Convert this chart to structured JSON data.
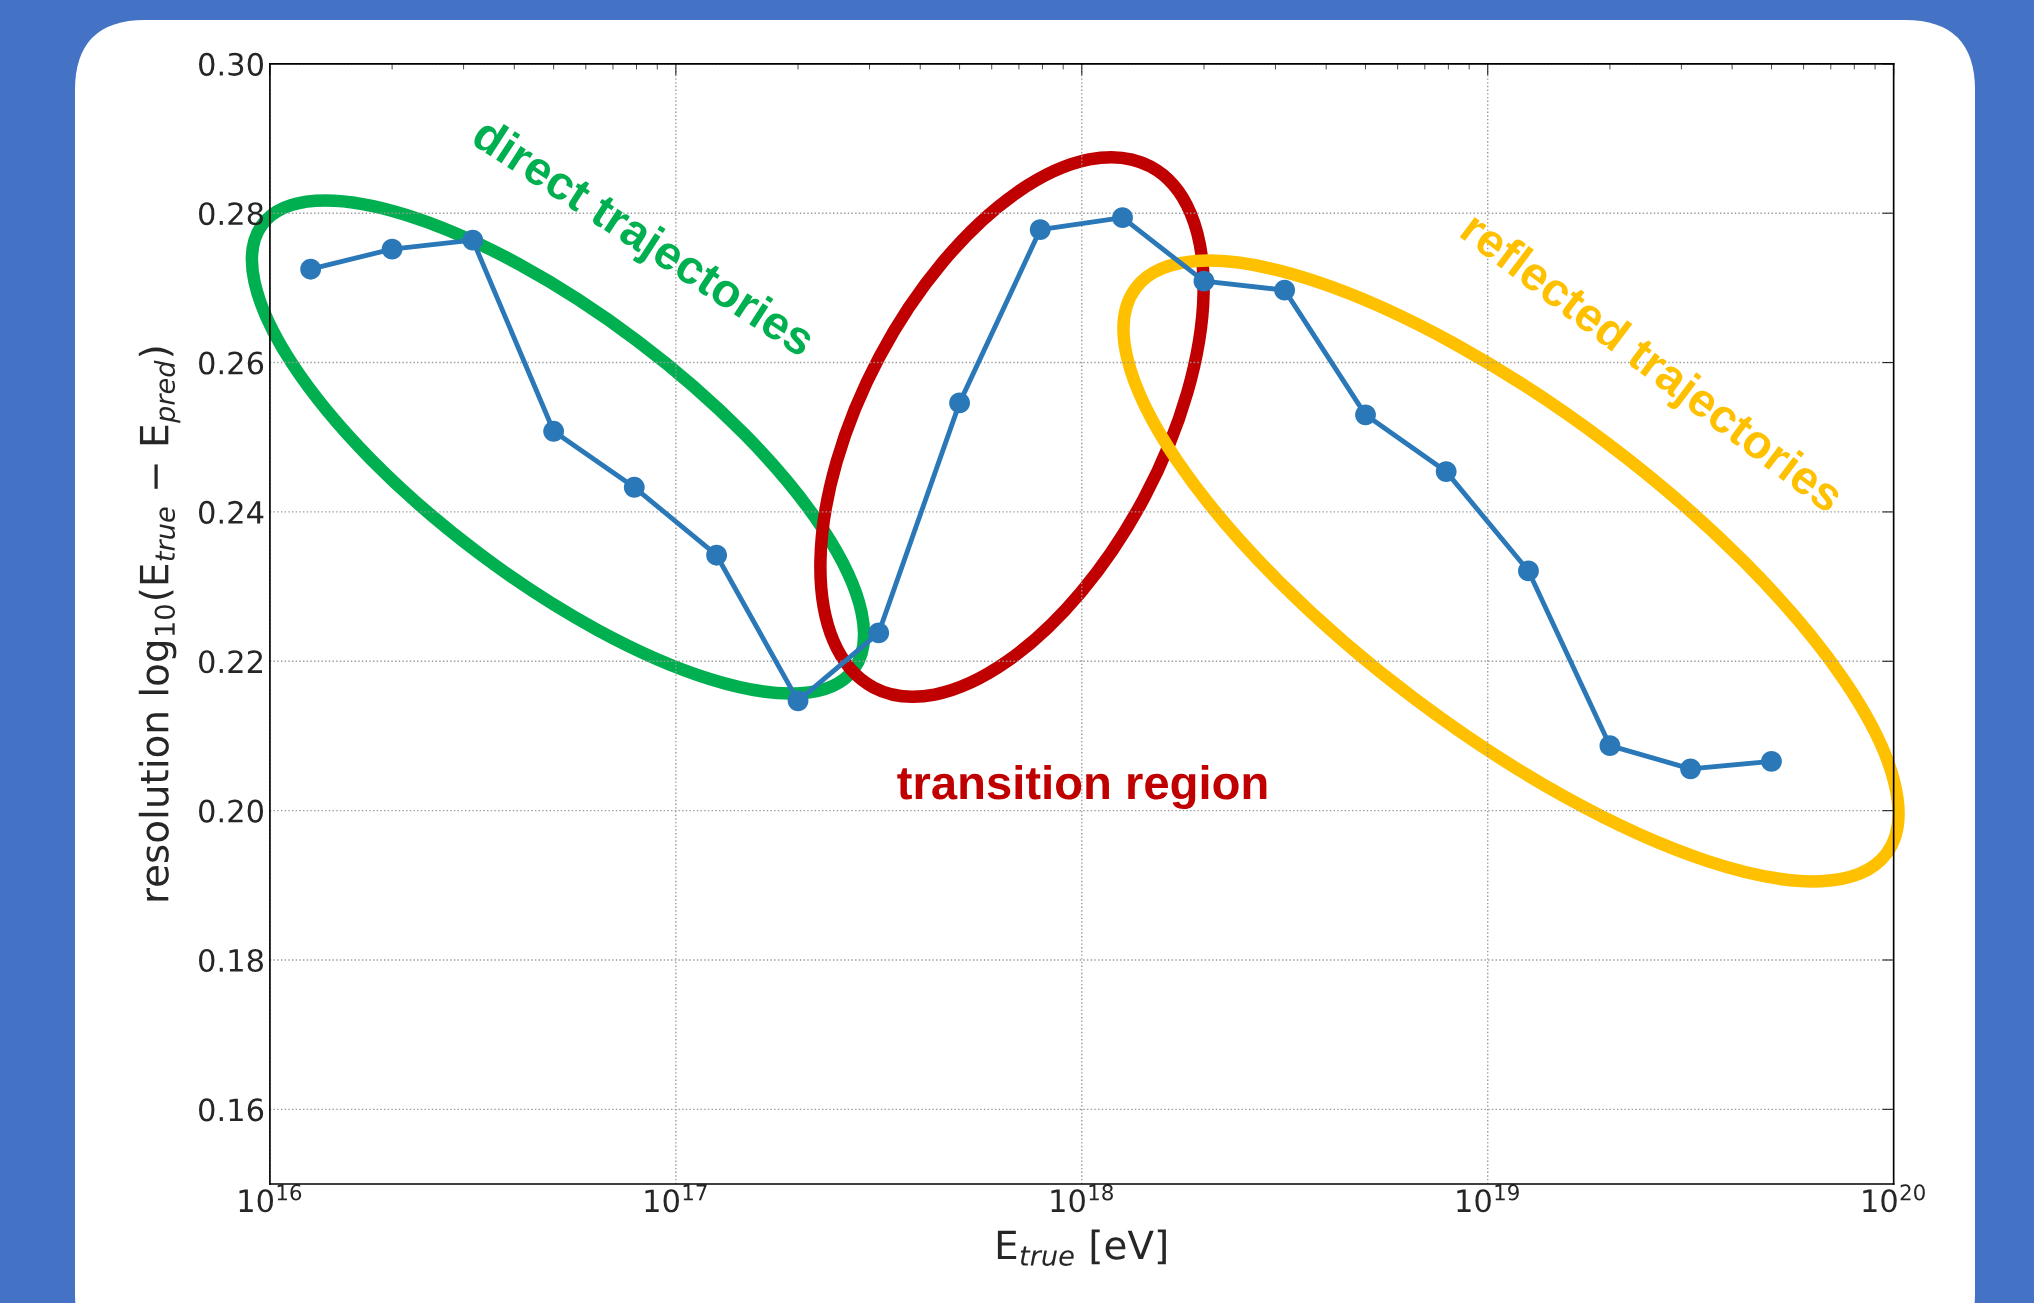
{
  "chart_data": {
    "type": "line",
    "xlabel": "E$_{true}$ [eV]",
    "ylabel": "resolution log$_{10}$(E$_{true}$ − E$_{pred}$)",
    "x": [
      1.26e+16,
      2e+16,
      3.16e+16,
      5e+16,
      7.9e+16,
      1.26e+17,
      2e+17,
      3.16e+17,
      5e+17,
      7.9e+17,
      1.26e+18,
      2e+18,
      3.16e+18,
      5e+18,
      7.9e+18,
      1.26e+19,
      2e+19,
      3.16e+19,
      5e+19
    ],
    "series": [
      {
        "color": "#2a78b8",
        "values": [
          0.2725,
          0.2752,
          0.2764,
          0.2508,
          0.2433,
          0.2342,
          0.2147,
          0.2238,
          0.2546,
          0.2778,
          0.2794,
          0.2709,
          0.2697,
          0.253,
          0.2454,
          0.2321,
          0.2087,
          0.2056,
          0.2066
        ]
      }
    ],
    "log": "x",
    "xlim": [
      1e+16,
      1e+20
    ],
    "xticks": [
      {
        "value": 1e+16,
        "label": "10$^{16}$"
      },
      {
        "value": 1e+17,
        "label": "10$^{17}$"
      },
      {
        "value": 1e+18,
        "label": "10$^{18}$"
      },
      {
        "value": 1e+19,
        "label": "10$^{19}$"
      },
      {
        "value": 1e+20,
        "label": "10$^{20}$"
      }
    ],
    "ylim": [
      0.15,
      0.3
    ],
    "yticks": [
      {
        "value": 0.16,
        "label": "0.16"
      },
      {
        "value": 0.18,
        "label": "0.18"
      },
      {
        "value": 0.2,
        "label": "0.20"
      },
      {
        "value": 0.22,
        "label": "0.22"
      },
      {
        "value": 0.24,
        "label": "0.24"
      },
      {
        "value": 0.26,
        "label": "0.26"
      },
      {
        "value": 0.28,
        "label": "0.28"
      },
      {
        "value": 0.3,
        "label": "0.30"
      }
    ],
    "grid": true,
    "marker": "circle",
    "line_style": "solid",
    "annotations": [
      "direct trajectories",
      "transition region",
      "reflected trajectories"
    ]
  }
}
